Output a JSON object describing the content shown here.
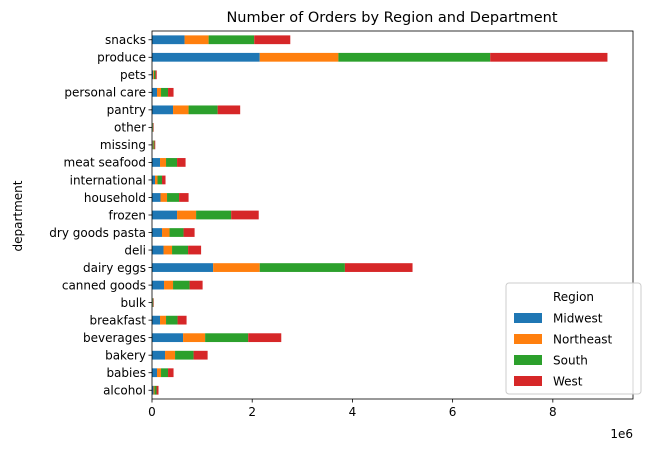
{
  "chart_data": {
    "type": "bar",
    "orientation": "horizontal",
    "stacked": true,
    "title": "Number of Orders by Region and Department",
    "xlabel": "",
    "ylabel": "department",
    "x_offset_label": "1e6",
    "xlim": [
      0,
      9.6
    ],
    "xticks": [
      0,
      2,
      4,
      6,
      8
    ],
    "legend_title": "Region",
    "legend_position": "lower right",
    "grid": false,
    "categories": [
      "alcohol",
      "babies",
      "bakery",
      "beverages",
      "breakfast",
      "bulk",
      "canned goods",
      "dairy eggs",
      "deli",
      "dry goods pasta",
      "frozen",
      "household",
      "international",
      "meat seafood",
      "missing",
      "other",
      "pantry",
      "personal care",
      "pets",
      "produce",
      "snacks"
    ],
    "series": [
      {
        "name": "Midwest",
        "color": "#1f77b4",
        "values": [
          0.03,
          0.1,
          0.26,
          0.62,
          0.16,
          0.008,
          0.24,
          1.22,
          0.23,
          0.2,
          0.5,
          0.17,
          0.06,
          0.16,
          0.015,
          0.008,
          0.42,
          0.1,
          0.022,
          2.15,
          0.65
        ]
      },
      {
        "name": "Northeast",
        "color": "#ff7f0e",
        "values": [
          0.02,
          0.08,
          0.2,
          0.44,
          0.12,
          0.006,
          0.18,
          0.93,
          0.17,
          0.15,
          0.38,
          0.13,
          0.05,
          0.12,
          0.012,
          0.006,
          0.31,
          0.08,
          0.017,
          1.57,
          0.48
        ]
      },
      {
        "name": "South",
        "color": "#2ca02c",
        "values": [
          0.04,
          0.14,
          0.37,
          0.86,
          0.23,
          0.012,
          0.33,
          1.7,
          0.32,
          0.28,
          0.7,
          0.24,
          0.09,
          0.22,
          0.021,
          0.011,
          0.58,
          0.14,
          0.03,
          3.03,
          0.91
        ]
      },
      {
        "name": "West",
        "color": "#d62728",
        "values": [
          0.04,
          0.11,
          0.28,
          0.66,
          0.18,
          0.009,
          0.26,
          1.35,
          0.26,
          0.22,
          0.55,
          0.19,
          0.07,
          0.17,
          0.017,
          0.009,
          0.45,
          0.11,
          0.025,
          2.34,
          0.72
        ]
      }
    ]
  }
}
